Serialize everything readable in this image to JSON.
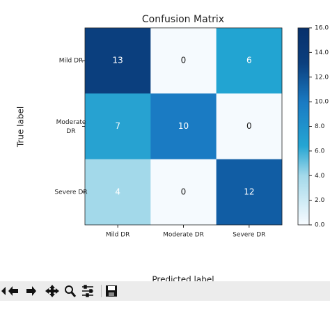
{
  "chart_data": {
    "type": "heatmap",
    "title": "Confusion Matrix",
    "x_label": "Predicted label",
    "y_label": "True label",
    "x_categories": [
      "Mild DR",
      "Moderate DR",
      "Severe DR"
    ],
    "y_categories": [
      "Mild DR",
      "Moderate\nDR",
      "Severe DR"
    ],
    "values": [
      [
        13,
        0,
        6
      ],
      [
        7,
        10,
        0
      ],
      [
        4,
        0,
        12
      ]
    ],
    "colors": [
      [
        "#0b3f7e",
        "#f5fafe",
        "#22a4d2"
      ],
      [
        "#27a2d1",
        "#1a7bc3",
        "#f5fafe"
      ],
      [
        "#a3d9ea",
        "#f5fafe",
        "#115da4"
      ]
    ],
    "colorbar_lim": [
      0,
      16
    ],
    "colorbar_ticks": [
      {
        "value": 0,
        "label": "0.0"
      },
      {
        "value": 2,
        "label": "2.0"
      },
      {
        "value": 4,
        "label": "4.0"
      },
      {
        "value": 6,
        "label": "6.0"
      },
      {
        "value": 8,
        "label": "8.0"
      },
      {
        "value": 10,
        "label": "10.0"
      },
      {
        "value": 12,
        "label": "12.0"
      },
      {
        "value": 14,
        "label": "14.0"
      },
      {
        "value": 16,
        "label": "16.0"
      }
    ]
  }
}
